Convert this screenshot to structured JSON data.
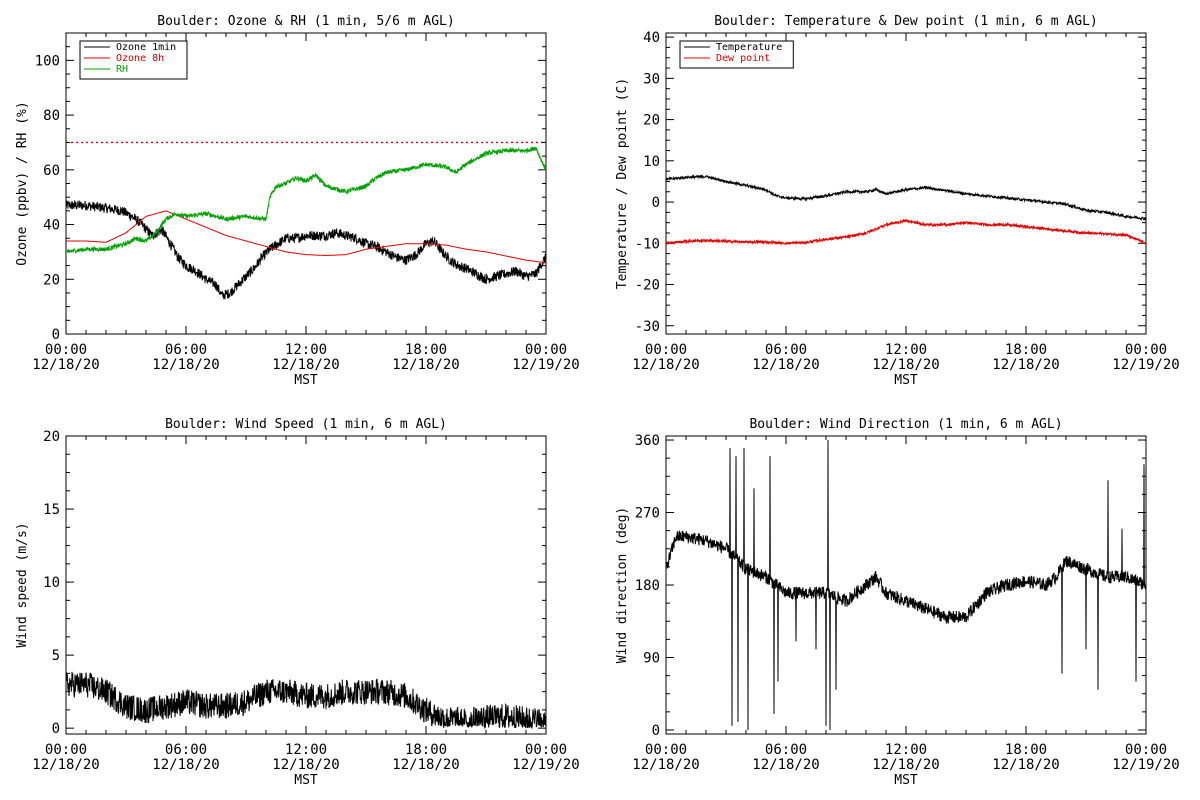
{
  "chart_data": [
    {
      "type": "line",
      "title": "Boulder: Ozone & RH (1 min, 5/6 m AGL)",
      "xlabel": "MST",
      "ylabel": "Ozone (ppbv) / RH (%)",
      "xlim": [
        0,
        24
      ],
      "ylim": [
        0,
        110
      ],
      "x_tick_labels": [
        [
          "00:00",
          "12/18/20"
        ],
        [
          "06:00",
          "12/18/20"
        ],
        [
          "12:00",
          "12/18/20"
        ],
        [
          "18:00",
          "12/18/20"
        ],
        [
          "00:00",
          "12/19/20"
        ]
      ],
      "y_ticks": [
        0,
        20,
        40,
        60,
        80,
        100
      ],
      "legend_position": "top-left",
      "reference_lines": [
        {
          "y": 70,
          "color": "#e00000",
          "style": "dotted"
        }
      ],
      "series": [
        {
          "name": "Ozone 1min",
          "color": "#000000",
          "noise": 1.8,
          "points": [
            [
              0,
              47
            ],
            [
              1,
              47
            ],
            [
              2,
              46
            ],
            [
              2.8,
              45
            ],
            [
              3.3,
              43
            ],
            [
              3.8,
              40
            ],
            [
              4.3,
              36
            ],
            [
              4.8,
              38
            ],
            [
              5.3,
              32
            ],
            [
              5.6,
              28
            ],
            [
              6,
              25
            ],
            [
              6.5,
              23
            ],
            [
              7,
              20
            ],
            [
              7.5,
              18
            ],
            [
              7.8,
              14
            ],
            [
              8.2,
              15
            ],
            [
              8.6,
              18
            ],
            [
              9,
              21
            ],
            [
              9.4,
              24
            ],
            [
              9.8,
              28
            ],
            [
              10.2,
              31
            ],
            [
              10.6,
              33
            ],
            [
              11,
              35
            ],
            [
              11.5,
              35
            ],
            [
              12,
              36
            ],
            [
              12.5,
              36
            ],
            [
              13,
              36
            ],
            [
              13.5,
              37
            ],
            [
              14,
              36
            ],
            [
              14.5,
              35
            ],
            [
              15,
              33
            ],
            [
              15.5,
              32
            ],
            [
              16,
              30
            ],
            [
              16.5,
              28
            ],
            [
              17,
              27
            ],
            [
              17.5,
              29
            ],
            [
              18,
              33
            ],
            [
              18.4,
              34
            ],
            [
              18.8,
              30
            ],
            [
              19.2,
              27
            ],
            [
              19.6,
              25
            ],
            [
              20,
              24
            ],
            [
              20.5,
              22
            ],
            [
              21,
              20
            ],
            [
              21.5,
              21
            ],
            [
              22,
              22
            ],
            [
              22.5,
              23
            ],
            [
              23,
              21
            ],
            [
              23.5,
              22
            ],
            [
              23.8,
              26
            ],
            [
              24,
              28
            ]
          ]
        },
        {
          "name": "Ozone 8h",
          "color": "#e00000",
          "noise": 0,
          "points": [
            [
              0,
              34
            ],
            [
              1,
              34
            ],
            [
              2,
              33.5
            ],
            [
              3,
              37
            ],
            [
              4,
              43
            ],
            [
              5,
              45
            ],
            [
              6,
              42
            ],
            [
              7,
              39
            ],
            [
              8,
              36
            ],
            [
              9,
              34
            ],
            [
              10,
              32
            ],
            [
              11,
              30
            ],
            [
              12,
              29
            ],
            [
              13,
              28.7
            ],
            [
              14,
              29
            ],
            [
              15,
              31
            ],
            [
              16,
              32
            ],
            [
              17,
              33
            ],
            [
              18,
              33
            ],
            [
              19,
              32.5
            ],
            [
              20,
              31
            ],
            [
              21,
              30
            ],
            [
              22,
              28.5
            ],
            [
              23,
              27
            ],
            [
              24,
              26
            ]
          ]
        },
        {
          "name": "RH",
          "color": "#00a000",
          "noise": 0.8,
          "points": [
            [
              0,
              30
            ],
            [
              1,
              31
            ],
            [
              2,
              31
            ],
            [
              3,
              33
            ],
            [
              3.5,
              35
            ],
            [
              4,
              34
            ],
            [
              4.5,
              37
            ],
            [
              5,
              42
            ],
            [
              5.5,
              44
            ],
            [
              6,
              43
            ],
            [
              7,
              44
            ],
            [
              8,
              42
            ],
            [
              9,
              43
            ],
            [
              10,
              42
            ],
            [
              10.2,
              50
            ],
            [
              10.5,
              54
            ],
            [
              11,
              55
            ],
            [
              11.5,
              57
            ],
            [
              12,
              56
            ],
            [
              12.5,
              58
            ],
            [
              13,
              54
            ],
            [
              13.5,
              53
            ],
            [
              14,
              52
            ],
            [
              15,
              54
            ],
            [
              15.5,
              57
            ],
            [
              16,
              59
            ],
            [
              17,
              60
            ],
            [
              18,
              62
            ],
            [
              19,
              61
            ],
            [
              19.5,
              59
            ],
            [
              20,
              62
            ],
            [
              20.5,
              64
            ],
            [
              21,
              66
            ],
            [
              22,
              67
            ],
            [
              23,
              67
            ],
            [
              23.5,
              68
            ],
            [
              23.8,
              63
            ],
            [
              24,
              60
            ]
          ]
        }
      ]
    },
    {
      "type": "line",
      "title": "Boulder: Temperature & Dew point (1 min, 6 m AGL)",
      "xlabel": "MST",
      "ylabel": "Temperature / Dew point (C)",
      "xlim": [
        0,
        24
      ],
      "ylim": [
        -32,
        41
      ],
      "x_tick_labels": [
        [
          "00:00",
          "12/18/20"
        ],
        [
          "06:00",
          "12/18/20"
        ],
        [
          "12:00",
          "12/18/20"
        ],
        [
          "18:00",
          "12/18/20"
        ],
        [
          "00:00",
          "12/19/20"
        ]
      ],
      "y_ticks": [
        -30,
        -20,
        -10,
        0,
        10,
        20,
        30,
        40
      ],
      "legend_position": "top-left",
      "reference_lines": [],
      "series": [
        {
          "name": "Temperature",
          "color": "#000000",
          "noise": 0.3,
          "points": [
            [
              0,
              5.5
            ],
            [
              1,
              6
            ],
            [
              2,
              6.2
            ],
            [
              3,
              5
            ],
            [
              4,
              4
            ],
            [
              5,
              3
            ],
            [
              5.5,
              1.5
            ],
            [
              6,
              1
            ],
            [
              7,
              0.8
            ],
            [
              8,
              1.5
            ],
            [
              9,
              2.5
            ],
            [
              10,
              2.5
            ],
            [
              10.5,
              3
            ],
            [
              11,
              2
            ],
            [
              12,
              3
            ],
            [
              13,
              3.5
            ],
            [
              14,
              2.8
            ],
            [
              15,
              2
            ],
            [
              16,
              1.5
            ],
            [
              17,
              1
            ],
            [
              18,
              0.5
            ],
            [
              19,
              0
            ],
            [
              20,
              -0.5
            ],
            [
              21,
              -2
            ],
            [
              22,
              -2.5
            ],
            [
              23,
              -3.5
            ],
            [
              24,
              -4
            ]
          ]
        },
        {
          "name": "Dew point",
          "color": "#e00000",
          "noise": 0.3,
          "points": [
            [
              0,
              -10
            ],
            [
              1,
              -9.5
            ],
            [
              2,
              -9.3
            ],
            [
              3,
              -9.5
            ],
            [
              4,
              -9.7
            ],
            [
              5,
              -9.7
            ],
            [
              6,
              -10
            ],
            [
              7,
              -9.8
            ],
            [
              8,
              -9
            ],
            [
              9,
              -8.5
            ],
            [
              10,
              -7.5
            ],
            [
              11,
              -5.5
            ],
            [
              12,
              -4.5
            ],
            [
              13,
              -5.5
            ],
            [
              14,
              -5.5
            ],
            [
              15,
              -5
            ],
            [
              16,
              -5.5
            ],
            [
              17,
              -5.5
            ],
            [
              18,
              -6
            ],
            [
              19,
              -6.5
            ],
            [
              20,
              -7
            ],
            [
              21,
              -7.5
            ],
            [
              22,
              -7.7
            ],
            [
              23,
              -8
            ],
            [
              24,
              -10
            ]
          ]
        }
      ]
    },
    {
      "type": "line",
      "title": "Boulder: Wind Speed (1 min, 6 m AGL)",
      "xlabel": "MST",
      "ylabel": "Wind speed (m/s)",
      "xlim": [
        0,
        24
      ],
      "ylim": [
        -0.4,
        20
      ],
      "x_tick_labels": [
        [
          "00:00",
          "12/18/20"
        ],
        [
          "06:00",
          "12/18/20"
        ],
        [
          "12:00",
          "12/18/20"
        ],
        [
          "18:00",
          "12/18/20"
        ],
        [
          "00:00",
          "12/19/20"
        ]
      ],
      "y_ticks": [
        0,
        5,
        10,
        15,
        20
      ],
      "legend_position": "none",
      "reference_lines": [],
      "series": [
        {
          "name": "",
          "color": "#000000",
          "noise": 0.9,
          "floor": 0,
          "points": [
            [
              0,
              3
            ],
            [
              1,
              3
            ],
            [
              2,
              2.5
            ],
            [
              3,
              1.5
            ],
            [
              4,
              1.2
            ],
            [
              5,
              1.5
            ],
            [
              6,
              1.8
            ],
            [
              7,
              1.5
            ],
            [
              8,
              1.5
            ],
            [
              9,
              1.8
            ],
            [
              10,
              2.5
            ],
            [
              11,
              2.5
            ],
            [
              12,
              2.2
            ],
            [
              13,
              2.2
            ],
            [
              14,
              2.5
            ],
            [
              15,
              2.5
            ],
            [
              16,
              2.5
            ],
            [
              17,
              2.2
            ],
            [
              18,
              1.2
            ],
            [
              19,
              0.6
            ],
            [
              20,
              0.5
            ],
            [
              21,
              0.7
            ],
            [
              22,
              0.8
            ],
            [
              23,
              0.6
            ],
            [
              24,
              0.5
            ]
          ]
        }
      ]
    },
    {
      "type": "line",
      "title": "Boulder: Wind Direction (1 min, 6 m AGL)",
      "xlabel": "MST",
      "ylabel": "Wind direction (deg)",
      "xlim": [
        0,
        24
      ],
      "ylim": [
        -5,
        365
      ],
      "x_tick_labels": [
        [
          "00:00",
          "12/18/20"
        ],
        [
          "06:00",
          "12/18/20"
        ],
        [
          "12:00",
          "12/18/20"
        ],
        [
          "18:00",
          "12/18/20"
        ],
        [
          "00:00",
          "12/19/20"
        ]
      ],
      "y_ticks": [
        0,
        90,
        180,
        270,
        360
      ],
      "legend_position": "none",
      "reference_lines": [],
      "series": [
        {
          "name": "",
          "color": "#000000",
          "noise": 8,
          "points": [
            [
              0,
              200
            ],
            [
              0.5,
              240
            ],
            [
              1,
              240
            ],
            [
              2,
              235
            ],
            [
              3,
              225
            ],
            [
              4,
              200
            ],
            [
              5,
              190
            ],
            [
              6,
              170
            ],
            [
              7,
              170
            ],
            [
              8,
              170
            ],
            [
              9,
              160
            ],
            [
              10,
              180
            ],
            [
              10.5,
              190
            ],
            [
              11,
              170
            ],
            [
              12,
              160
            ],
            [
              13,
              150
            ],
            [
              14,
              140
            ],
            [
              15,
              140
            ],
            [
              16,
              170
            ],
            [
              17,
              180
            ],
            [
              18,
              185
            ],
            [
              19,
              180
            ],
            [
              19.5,
              190
            ],
            [
              20,
              210
            ],
            [
              21,
              200
            ],
            [
              22,
              190
            ],
            [
              23,
              190
            ],
            [
              24,
              180
            ]
          ],
          "spikes": [
            [
              3.2,
              350
            ],
            [
              3.3,
              5
            ],
            [
              3.5,
              340
            ],
            [
              3.6,
              10
            ],
            [
              3.9,
              350
            ],
            [
              4.1,
              0
            ],
            [
              4.4,
              300
            ],
            [
              5.2,
              340
            ],
            [
              5.4,
              20
            ],
            [
              5.6,
              60
            ],
            [
              6.5,
              110
            ],
            [
              7.5,
              100
            ],
            [
              8.0,
              5
            ],
            [
              8.1,
              360
            ],
            [
              8.2,
              0
            ],
            [
              8.5,
              50
            ],
            [
              19.8,
              70
            ],
            [
              21.0,
              100
            ],
            [
              21.6,
              50
            ],
            [
              22.1,
              310
            ],
            [
              22.8,
              250
            ],
            [
              23.5,
              60
            ],
            [
              23.9,
              330
            ]
          ]
        }
      ]
    }
  ]
}
